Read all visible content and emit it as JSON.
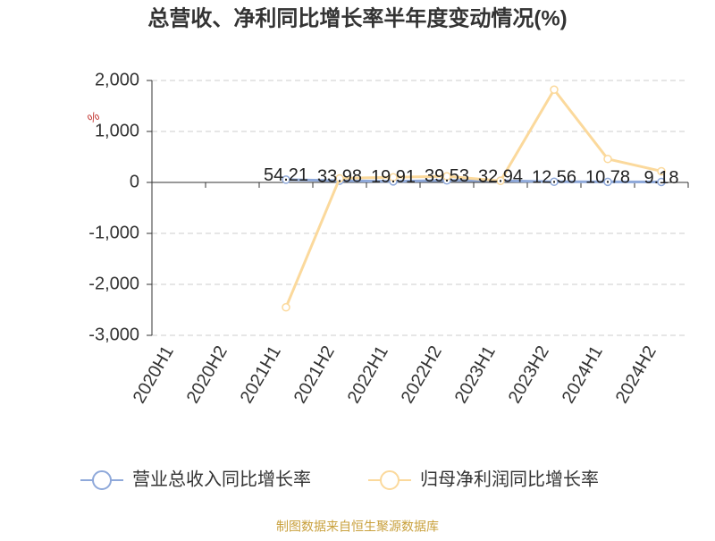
{
  "chart_data": {
    "type": "line",
    "title": "总营收、净利同比增长率半年度变动情况(%)",
    "y_unit": "%",
    "source": "制图数据来自恒生聚源数据库",
    "categories": [
      "2020H1",
      "2020H2",
      "2021H1",
      "2021H2",
      "2022H1",
      "2022H2",
      "2023H1",
      "2023H2",
      "2024H1",
      "2024H2"
    ],
    "series": [
      {
        "name": "营业总收入同比增长率",
        "color": "#8fa9da",
        "data_labels": true,
        "values": [
          null,
          null,
          54.21,
          33.98,
          19.91,
          39.53,
          32.94,
          12.56,
          10.78,
          9.18
        ]
      },
      {
        "name": "归母净利润同比增长率",
        "color": "#fbd99c",
        "data_labels": false,
        "values": [
          null,
          null,
          -2450,
          80,
          100,
          120,
          30,
          1820,
          460,
          220
        ]
      }
    ],
    "ylim": [
      -3000,
      2000
    ],
    "yticks": [
      {
        "value": -3000,
        "label": "-3,000"
      },
      {
        "value": -2000,
        "label": "-2,000"
      },
      {
        "value": -1000,
        "label": "-1,000"
      },
      0,
      {
        "value": 1000,
        "label": "1,000"
      },
      {
        "value": 2000,
        "label": "2,000"
      }
    ],
    "grid": true,
    "legend": "bottom"
  }
}
